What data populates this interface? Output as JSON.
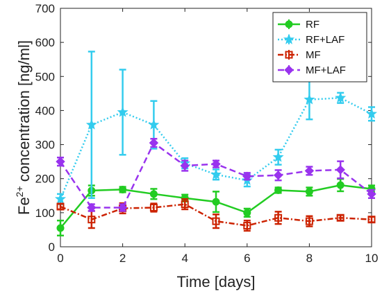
{
  "chart_data": {
    "type": "line",
    "xlabel": "Time [days]",
    "ylabel_main": "Fe",
    "ylabel_sup": "2+",
    "ylabel_rest": " concentration [ng/ml]",
    "xlim": [
      0,
      10
    ],
    "ylim": [
      0,
      700
    ],
    "xticks": [
      0,
      2,
      4,
      6,
      8,
      10
    ],
    "yticks": [
      0,
      100,
      200,
      300,
      400,
      500,
      600,
      700
    ],
    "grid": false,
    "legend_position": "top-right",
    "x": [
      0,
      1,
      2,
      3,
      4,
      5,
      6,
      7,
      8,
      9,
      10
    ],
    "series": [
      {
        "name": "RF",
        "color": "#22cc22",
        "line": "solid",
        "marker": "circle",
        "values": [
          55,
          165,
          168,
          155,
          143,
          132,
          100,
          166,
          162,
          181,
          170
        ],
        "errors": [
          22,
          15,
          8,
          15,
          10,
          30,
          12,
          8,
          12,
          18,
          10
        ]
      },
      {
        "name": "RF+LAF",
        "color": "#33ccee",
        "line": "dotted",
        "marker": "star",
        "values": [
          140,
          358,
          395,
          358,
          245,
          212,
          195,
          263,
          432,
          437,
          390
        ],
        "errors": [
          15,
          215,
          125,
          70,
          15,
          15,
          18,
          22,
          58,
          15,
          20
        ]
      },
      {
        "name": "MF",
        "color": "#cc2200",
        "line": "dashdot",
        "marker": "square",
        "values": [
          118,
          80,
          113,
          115,
          125,
          75,
          62,
          85,
          75,
          85,
          80
        ],
        "errors": [
          8,
          25,
          15,
          12,
          15,
          20,
          15,
          18,
          15,
          8,
          8
        ]
      },
      {
        "name": "MF+LAF",
        "color": "#9933ee",
        "line": "dashed",
        "marker": "diamond",
        "values": [
          250,
          115,
          115,
          305,
          238,
          243,
          207,
          210,
          223,
          226,
          155
        ],
        "errors": [
          12,
          10,
          10,
          12,
          15,
          10,
          10,
          15,
          12,
          25,
          12
        ]
      }
    ]
  }
}
